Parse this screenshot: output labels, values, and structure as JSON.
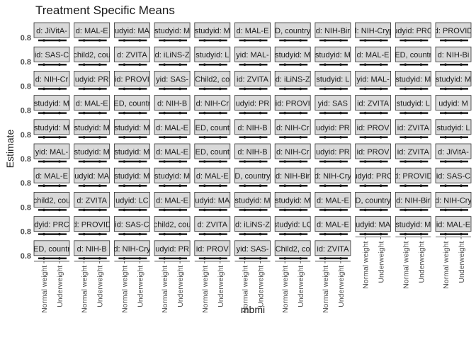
{
  "chart_data": {
    "type": "faceted-point",
    "title": "Treatment Specific Means",
    "xlabel": "mbmi",
    "ylabel": "Estimate",
    "x_categories": [
      "Normal weight",
      "Underweight"
    ],
    "y_tick_label": "0.8",
    "facet_grid": {
      "cols": 11,
      "rows": 10
    },
    "facet_strips": [
      [
        "d: JiVitA-",
        "d: MAL-E",
        "udyid: MA",
        "studyid: M",
        "studyid: M",
        "d: MAL-E",
        "D, country",
        "d: NIH-Bir",
        "d: NIH-Cryp",
        "udyid: PRO",
        "d: PROVID"
      ],
      [
        "id: SAS-C",
        "child2, cou",
        "d: ZVITA",
        "d: iLiNS-Z",
        "studyid: L",
        "yid: MAL-",
        "studyid: M",
        "studyid: M",
        "d: MAL-E",
        "ED, countr",
        "d: NIH-Bi"
      ],
      [
        "d: NIH-Cr",
        "udyid: PR",
        "id: PROVI",
        "yid: SAS-",
        "Child2, co",
        "id: ZVITA",
        "d: iLiNS-Z",
        "studyid: L",
        "yid: MAL-",
        "studyid: M",
        "studyid: M"
      ],
      [
        "studyid: M",
        "d: MAL-E",
        "ED, countr",
        "d: NIH-B",
        "d: NIH-Cr",
        "udyid: PR",
        "id: PROVI",
        "yid: SAS",
        "id: ZVITA",
        "studyid: L",
        "udyid: M"
      ],
      [
        "studyid: M",
        "studyid: M",
        "studyid: M",
        "d: MAL-E",
        "ED, count",
        "d: NIH-B",
        "d: NIH-Cr",
        "udyid: PR",
        "id: PROV",
        "id: ZVITA",
        "studyid: L"
      ],
      [
        "yid: MAL-",
        "studyid: M",
        "studyid: M",
        "d: MAL-E",
        "ED, count",
        "d: NIH-B",
        "d: NIH-Cr",
        "udyid: PR",
        "id: PROV",
        "id: ZVITA",
        "d: JiVitA-"
      ],
      [
        "d: MAL-E",
        "udyid: MA",
        "studyid: M",
        "studyid: M",
        "d: MAL-E",
        "D, country",
        "d: NIH-Bir",
        "d: NIH-Cry",
        "udyid: PRO",
        "d: PROVID",
        "id: SAS-C"
      ],
      [
        "child2, cou",
        "d: ZVITA",
        "udyid: LC",
        "d: MAL-E",
        "udyid: MA",
        "studyid: M",
        "studyid: M",
        "d: MAL-E",
        "D, country",
        "d: NIH-Bir",
        "d: NIH-Cry"
      ],
      [
        "dyid: PRC",
        "d: PROVID",
        "id: SAS-C",
        "child2, cou",
        "d: ZVITA",
        "d: iLiNS-Z",
        "studyid: LC",
        "d: MAL-E",
        "udyid: MA",
        "studyid: M",
        "id: MAL-E"
      ],
      [
        "ED, countr",
        "d: NIH-B",
        "d: NIH-Cry",
        "udyid: PR",
        "id: PROV",
        "yid: SAS-",
        "Child2, co",
        "id: ZVITA",
        "",
        "",
        ""
      ]
    ],
    "facets_with_x_axis": [
      [
        9,
        0
      ],
      [
        9,
        1
      ],
      [
        9,
        2
      ],
      [
        9,
        3
      ],
      [
        9,
        4
      ],
      [
        9,
        5
      ],
      [
        9,
        6
      ],
      [
        9,
        7
      ],
      [
        8,
        8
      ],
      [
        8,
        9
      ],
      [
        8,
        10
      ]
    ],
    "point_estimate": 0.8,
    "grid": false,
    "legend": "none",
    "colors": {
      "strip_fill": "#d9d9d9",
      "strip_border": "#333333",
      "data": "#1a1a1a",
      "axis": "#333333"
    }
  }
}
